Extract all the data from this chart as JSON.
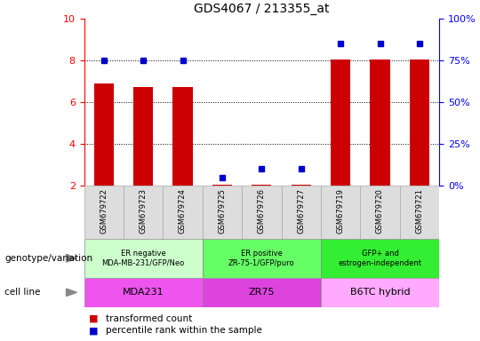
{
  "title": "GDS4067 / 213355_at",
  "samples": [
    "GSM679722",
    "GSM679723",
    "GSM679724",
    "GSM679725",
    "GSM679726",
    "GSM679727",
    "GSM679719",
    "GSM679720",
    "GSM679721"
  ],
  "transformed_count": [
    6.9,
    6.75,
    6.75,
    2.05,
    2.05,
    2.05,
    8.05,
    8.05,
    8.05
  ],
  "percentile_rank": [
    75,
    75,
    75,
    5,
    10,
    10,
    85,
    85,
    85
  ],
  "ylim_left": [
    2,
    10
  ],
  "ylim_right": [
    0,
    100
  ],
  "yticks_left": [
    2,
    4,
    6,
    8,
    10
  ],
  "yticks_right": [
    0,
    25,
    50,
    75,
    100
  ],
  "bar_color": "#cc0000",
  "dot_color": "#0000cc",
  "groups": [
    {
      "label": "ER negative\nMDA-MB-231/GFP/Neo",
      "start": 0,
      "end": 3,
      "bg": "#ccffcc"
    },
    {
      "label": "ER positive\nZR-75-1/GFP/puro",
      "start": 3,
      "end": 6,
      "bg": "#66ff66"
    },
    {
      "label": "GFP+ and\nestrogen-independent",
      "start": 6,
      "end": 9,
      "bg": "#33ee33"
    }
  ],
  "cell_lines": [
    {
      "label": "MDA231",
      "start": 0,
      "end": 3,
      "bg": "#ee55ee"
    },
    {
      "label": "ZR75",
      "start": 3,
      "end": 6,
      "bg": "#dd44dd"
    },
    {
      "label": "B6TC hybrid",
      "start": 6,
      "end": 9,
      "bg": "#ffaaff"
    }
  ],
  "legend_items": [
    {
      "color": "#cc0000",
      "label": "transformed count"
    },
    {
      "color": "#0000cc",
      "label": "percentile rank within the sample"
    }
  ],
  "dotted_yticks": [
    4,
    6,
    8
  ],
  "xtick_bg": "#dddddd",
  "genotype_label": "genotype/variation",
  "cellline_label": "cell line"
}
